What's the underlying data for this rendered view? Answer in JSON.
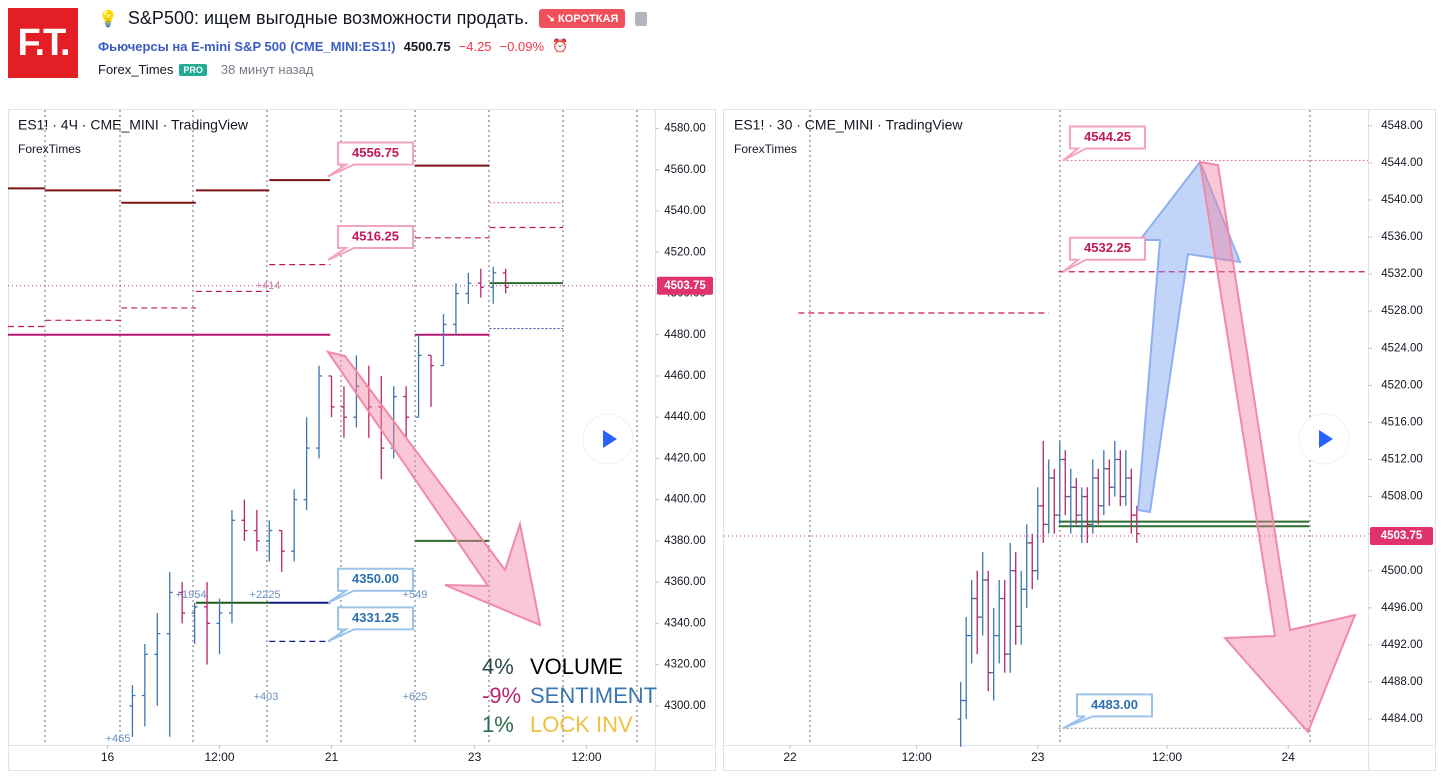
{
  "header": {
    "logo": "F.T.",
    "title": "S&P500: ищем выгодные возможности продать.",
    "badge": "↘ КОРОТКАЯ",
    "symbol_name": "Фьючерсы на E-mini S&P 500",
    "symbol_code": "(CME_MINI:ES1!)",
    "price": "4500.75",
    "change": "−4.25",
    "change_pct": "−0.09%",
    "author": "Forex_Times",
    "author_badge": "PRO",
    "time_ago": "38 минут назад"
  },
  "chart_data": [
    {
      "type": "ohlc",
      "title": "ES1! · 4Ч · CME_MINI · TradingView",
      "subtitle": "ForexTimes",
      "x": [
        0,
        1,
        2,
        3,
        4,
        5,
        6,
        7,
        8,
        9,
        10,
        11,
        12,
        13,
        14,
        15,
        16,
        17,
        18,
        19,
        20,
        21,
        22,
        23,
        24,
        25,
        26,
        27,
        28,
        29,
        30
      ],
      "open": [
        4300,
        4305,
        4325,
        4335,
        4355,
        4345,
        4348,
        4340,
        4345,
        4390,
        4385,
        4380,
        4385,
        4375,
        4400,
        4425,
        4460,
        4445,
        4440,
        4455,
        4445,
        4425,
        4450,
        4440,
        4470,
        4465,
        4485,
        4500,
        4505,
        4503,
        4510
      ],
      "high": [
        4310,
        4330,
        4345,
        4365,
        4360,
        4350,
        4360,
        4352,
        4395,
        4400,
        4395,
        4390,
        4385,
        4405,
        4440,
        4465,
        4460,
        4455,
        4470,
        4465,
        4460,
        4455,
        4455,
        4480,
        4470,
        4490,
        4505,
        4510,
        4512,
        4513,
        4512
      ],
      "low": [
        4285,
        4290,
        4300,
        4285,
        4340,
        4330,
        4320,
        4325,
        4340,
        4380,
        4375,
        4370,
        4365,
        4370,
        4395,
        4420,
        4440,
        4430,
        4435,
        4430,
        4410,
        4420,
        4430,
        4440,
        4445,
        4465,
        4480,
        4495,
        4498,
        4495,
        4500
      ],
      "close": [
        4305,
        4325,
        4335,
        4355,
        4345,
        4348,
        4340,
        4345,
        4390,
        4385,
        4380,
        4385,
        4375,
        4400,
        4425,
        4460,
        4445,
        4440,
        4455,
        4445,
        4425,
        4450,
        4440,
        4470,
        4465,
        4485,
        4500,
        4505,
        4503,
        4510,
        4503
      ],
      "up_color": "#3a77b0",
      "down_color": "#b5266b",
      "xlim": [
        -10,
        42
      ],
      "ylim": [
        4281,
        4589
      ],
      "xticks": [
        {
          "value": -2,
          "label": "16"
        },
        {
          "value": 7,
          "label": "12:00"
        },
        {
          "value": 16,
          "label": "21"
        },
        {
          "value": 27.5,
          "label": "23"
        },
        {
          "value": 36.5,
          "label": "12:00"
        }
      ],
      "yticks": [
        {
          "value": 4300,
          "label": "4300.00"
        },
        {
          "value": 4320,
          "label": "4320.00"
        },
        {
          "value": 4340,
          "label": "4340.00"
        },
        {
          "value": 4360,
          "label": "4360.00"
        },
        {
          "value": 4380,
          "label": "4380.00"
        },
        {
          "value": 4400,
          "label": "4400.00"
        },
        {
          "value": 4420,
          "label": "4420.00"
        },
        {
          "value": 4440,
          "label": "4440.00"
        },
        {
          "value": 4460,
          "label": "4460.00"
        },
        {
          "value": 4480,
          "label": "4480.00"
        },
        {
          "value": 4500,
          "label": "4500.00"
        },
        {
          "value": 4520,
          "label": "4520.00"
        },
        {
          "value": 4540,
          "label": "4540.00"
        },
        {
          "value": 4560,
          "label": "4560.00"
        },
        {
          "value": 4580,
          "label": "4580.00"
        }
      ],
      "last_price": {
        "value": 4503.75,
        "label": "4503.75"
      },
      "levels": [
        {
          "value": 4551,
          "from": -10,
          "to": -7,
          "color": "#7b1416",
          "style": "solid"
        },
        {
          "value": 4550,
          "from": -7,
          "to": -0.9,
          "color": "#7b1416",
          "style": "solid"
        },
        {
          "value": 4544,
          "from": -0.9,
          "to": 5.1,
          "color": "#7b1416",
          "style": "solid"
        },
        {
          "value": 4550,
          "from": 5.1,
          "to": 11,
          "color": "#7b1416",
          "style": "solid"
        },
        {
          "value": 4555,
          "from": 11,
          "to": 15.9,
          "color": "#7b1416",
          "style": "solid"
        },
        {
          "value": 4562,
          "from": 22.7,
          "to": 28.7,
          "color": "#7b1416",
          "style": "solid"
        },
        {
          "value": 4480,
          "from": -10,
          "to": 15.9,
          "color": "#b5196e",
          "style": "solid"
        },
        {
          "value": 4480,
          "from": 22.7,
          "to": 28.7,
          "color": "#b5196e",
          "style": "solid"
        },
        {
          "value": 4484,
          "from": -10,
          "to": -7,
          "color": "#c2185b",
          "style": "dashed"
        },
        {
          "value": 4487,
          "from": -7,
          "to": -0.9,
          "color": "#c2185b",
          "style": "dashed"
        },
        {
          "value": 4493,
          "from": -0.9,
          "to": 5.1,
          "color": "#c2185b",
          "style": "dashed"
        },
        {
          "value": 4501,
          "from": 5.1,
          "to": 11,
          "color": "#c2185b",
          "style": "dashed"
        },
        {
          "value": 4514,
          "from": 11,
          "to": 15.9,
          "color": "#c2185b",
          "style": "dashed"
        },
        {
          "value": 4527,
          "from": 22.7,
          "to": 28.7,
          "color": "#c2185b",
          "style": "dashed"
        },
        {
          "value": 4532,
          "from": 28.7,
          "to": 34.6,
          "color": "#c2185b",
          "style": "dashed"
        },
        {
          "value": 4544,
          "from": 28.7,
          "to": 34.6,
          "color": "#e48aa8",
          "style": "dotted"
        },
        {
          "value": 4505,
          "from": 28.7,
          "to": 34.6,
          "color": "#2e6b2e",
          "style": "solid"
        },
        {
          "value": 4380,
          "from": 22.7,
          "to": 28.7,
          "color": "#2e6b2e",
          "style": "solid"
        },
        {
          "value": 4350,
          "from": 5.1,
          "to": 11,
          "color": "#1f5a1f",
          "style": "solid"
        },
        {
          "value": 4350,
          "from": 11,
          "to": 15.9,
          "color": "#0d1a7a",
          "style": "solid"
        },
        {
          "value": 4331.25,
          "from": 11,
          "to": 15.9,
          "color": "#0d1a7a",
          "style": "dashed"
        },
        {
          "value": 4483,
          "from": 28.7,
          "to": 34.6,
          "color": "#3f51b5",
          "style": "dotted"
        }
      ],
      "callouts": [
        {
          "value": 4556.75,
          "label": "4556.75"
        },
        {
          "value": 4516.25,
          "label": "4516.25"
        },
        {
          "value": 4350.0,
          "label": "4350.00"
        },
        {
          "value": 4331.25,
          "label": "4331.25"
        }
      ],
      "annotations": [
        "+414",
        "+1954",
        "+2225",
        "+549",
        "+403",
        "+625",
        "+465"
      ],
      "stats": [
        {
          "pct": "4%",
          "label": "VOLUME"
        },
        {
          "pct": "-9%",
          "label": "SENTIMENT"
        },
        {
          "pct": "1%",
          "label": "LOCK INV"
        }
      ]
    },
    {
      "type": "ohlc",
      "title": "ES1! · 30 · CME_MINI · TradingView",
      "subtitle": "ForexTimes",
      "x": [
        0,
        1,
        2,
        3,
        4,
        5,
        6,
        7,
        8,
        9,
        10,
        11,
        12,
        13,
        14,
        15,
        16,
        17,
        18,
        19,
        20,
        21,
        22,
        23,
        24,
        25,
        26,
        27,
        28,
        29,
        30,
        31,
        32
      ],
      "open": [
        4484,
        4486,
        4493,
        4497,
        4495,
        4499,
        4489,
        4493,
        4497,
        4491,
        4500,
        4494,
        4498,
        4503,
        4500,
        4507,
        4505,
        4510,
        4506,
        4512,
        4508,
        4509,
        4506,
        4508,
        4505,
        4510,
        4507,
        4511,
        4509,
        4512,
        4508,
        4510,
        4506
      ],
      "high": [
        4488,
        4495,
        4499,
        4500,
        4502,
        4500,
        4496,
        4499,
        4499,
        4503,
        4502,
        4500,
        4505,
        4504,
        4509,
        4514,
        4512,
        4511,
        4514,
        4513,
        4511,
        4510,
        4509,
        4509,
        4512,
        4511,
        4513,
        4512,
        4514,
        4513,
        4513,
        4511,
        4507
      ],
      "low": [
        4481,
        4484,
        4490,
        4491,
        4493,
        4487,
        4486,
        4490,
        4489,
        4489,
        4492,
        4492,
        4496,
        4498,
        4499,
        4503,
        4504,
        4504,
        4505,
        4506,
        4504,
        4505,
        4503,
        4503,
        4504,
        4505,
        4506,
        4507,
        4508,
        4507,
        4507,
        4504,
        4503
      ],
      "close": [
        4486,
        4493,
        4497,
        4495,
        4499,
        4489,
        4493,
        4497,
        4491,
        4500,
        4494,
        4498,
        4503,
        4500,
        4507,
        4505,
        4510,
        4506,
        4512,
        4508,
        4509,
        4506,
        4508,
        4505,
        4510,
        4507,
        4511,
        4509,
        4512,
        4508,
        4510,
        4506,
        4504
      ],
      "up_color": "#3a77b0",
      "down_color": "#b5266b",
      "xlim": [
        -43,
        74
      ],
      "ylim": [
        4481.2,
        4549.7
      ],
      "xticks": [
        {
          "value": -31,
          "label": "22"
        },
        {
          "value": -8,
          "label": "12:00"
        },
        {
          "value": 14,
          "label": "23"
        },
        {
          "value": 37.5,
          "label": "12:00"
        },
        {
          "value": 59.5,
          "label": "24"
        }
      ],
      "yticks": [
        {
          "value": 4484,
          "label": "4484.00"
        },
        {
          "value": 4488,
          "label": "4488.00"
        },
        {
          "value": 4492,
          "label": "4492.00"
        },
        {
          "value": 4496,
          "label": "4496.00"
        },
        {
          "value": 4500,
          "label": "4500.00"
        },
        {
          "value": 4504,
          "label": "4504.00"
        },
        {
          "value": 4508,
          "label": "4508.00"
        },
        {
          "value": 4512,
          "label": "4512.00"
        },
        {
          "value": 4516,
          "label": "4516.00"
        },
        {
          "value": 4520,
          "label": "4520.00"
        },
        {
          "value": 4524,
          "label": "4524.00"
        },
        {
          "value": 4528,
          "label": "4528.00"
        },
        {
          "value": 4532,
          "label": "4532.00"
        },
        {
          "value": 4536,
          "label": "4536.00"
        },
        {
          "value": 4540,
          "label": "4540.00"
        },
        {
          "value": 4544,
          "label": "4544.00"
        },
        {
          "value": 4548,
          "label": "4548.00"
        }
      ],
      "last_price": {
        "value": 4503.75,
        "label": "4503.75"
      },
      "levels": [
        {
          "value": 4527.8,
          "from": -29.5,
          "to": 16,
          "color": "#c2185b",
          "style": "dashed"
        },
        {
          "value": 4532.25,
          "from": 17.8,
          "to": 74,
          "color": "#c2185b",
          "style": "dashed"
        },
        {
          "value": 4544.25,
          "from": 17.8,
          "to": 74,
          "color": "#e48aa8",
          "style": "dotted"
        },
        {
          "value": 4483,
          "from": 17.8,
          "to": 63.3,
          "color": "#9098a8",
          "style": "dotted"
        },
        {
          "value": 4505.3,
          "from": 17.8,
          "to": 63.3,
          "color": "#2e6b2e",
          "style": "solid"
        },
        {
          "value": 4504.8,
          "from": 17.8,
          "to": 63.3,
          "color": "#2e6b2e",
          "style": "solid"
        }
      ],
      "callouts": [
        {
          "value": 4544.25,
          "label": "4544.25"
        },
        {
          "value": 4532.25,
          "label": "4532.25"
        },
        {
          "value": 4483.0,
          "label": "4483.00"
        }
      ]
    }
  ]
}
